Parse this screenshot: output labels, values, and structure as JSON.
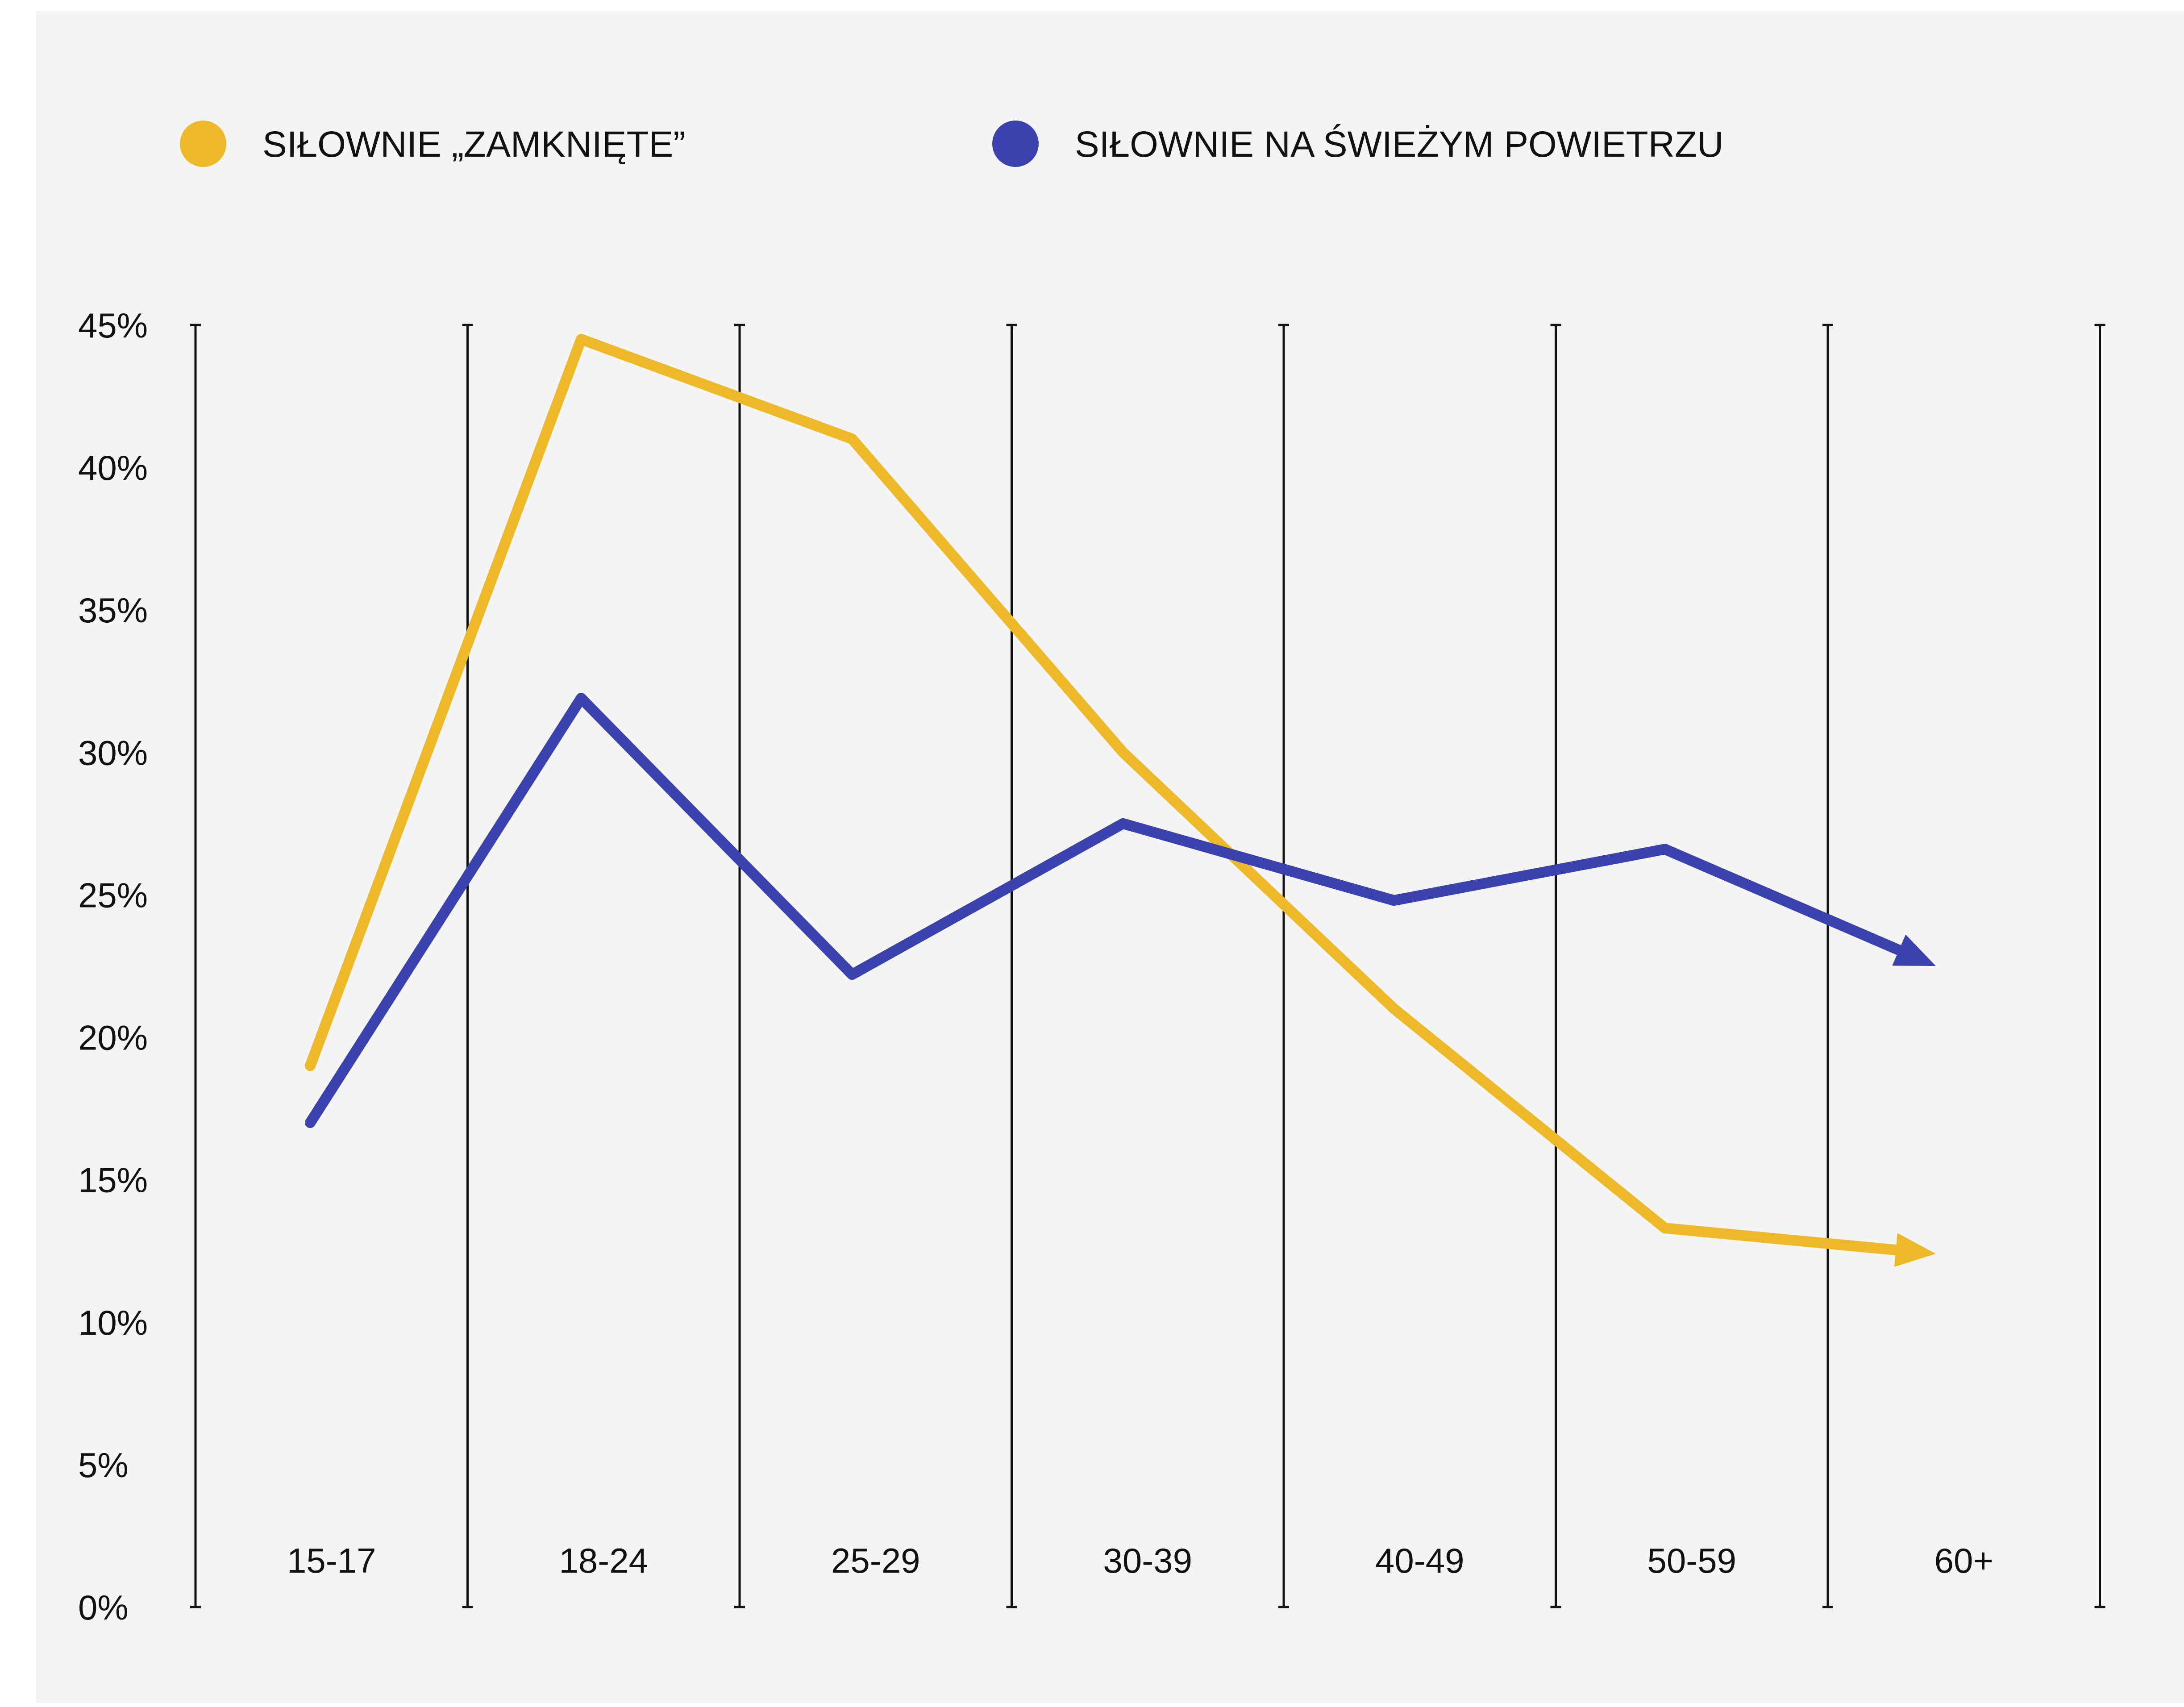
{
  "chart_data": {
    "type": "line",
    "title": "",
    "xlabel": "",
    "ylabel": "",
    "categories": [
      "15-17",
      "18-24",
      "25-29",
      "30-39",
      "40-49",
      "50-59",
      "60+"
    ],
    "y_ticks": [
      "0%",
      "5%",
      "10%",
      "15%",
      "20%",
      "25%",
      "30%",
      "35%",
      "40%",
      "45%"
    ],
    "ylim": [
      0,
      45
    ],
    "grid": "vertical lines between categories",
    "legend_position": "top",
    "series": [
      {
        "name": "SIŁOWNIE „ZAMKNIĘTE”",
        "color": "#EEB928",
        "values": [
          19,
          44.5,
          41,
          30,
          21,
          13.3,
          12.4
        ]
      },
      {
        "name": "SIŁOWNIE NA ŚWIEŻYM POWIETRZU",
        "color": "#3A42B0",
        "values": [
          17,
          31.9,
          22.2,
          27.5,
          24.8,
          26.6,
          22.5
        ]
      }
    ]
  },
  "colors": {
    "background": "#F5F5F5",
    "axis": "#111111"
  }
}
